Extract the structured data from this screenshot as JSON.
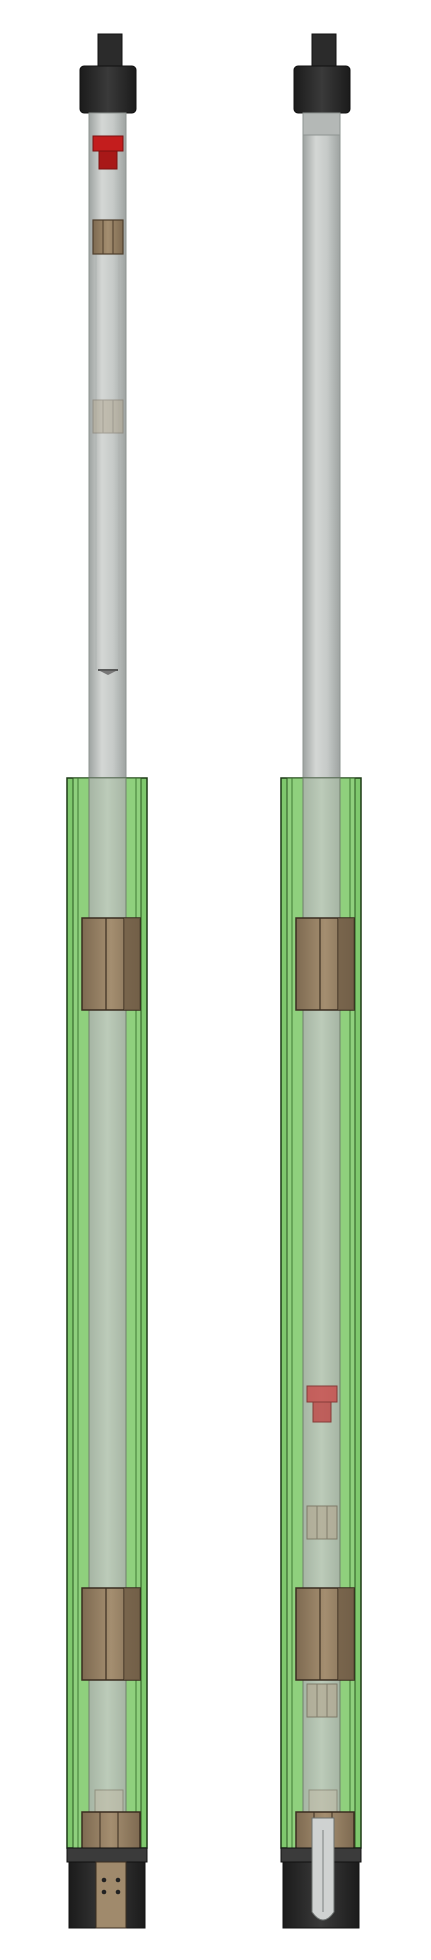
{
  "diagram": {
    "assemblies": [
      {
        "id": "left",
        "piston_at": "top"
      },
      {
        "id": "right",
        "piston_at": "bottom"
      }
    ]
  },
  "colors": {
    "background": "#ffffff",
    "inner_tube": "#c4c8c6",
    "inner_tube_edge": "#9aa09d",
    "outer_sleeve": "#7ec86a",
    "outer_sleeve_edge": "#1f3d18",
    "bearing": "#a08a6c",
    "bearing_dark": "#5e4c38",
    "piston_red": "#c41f1f",
    "end_cap": "#2a2a2a",
    "knob": "#2d2d2d"
  }
}
